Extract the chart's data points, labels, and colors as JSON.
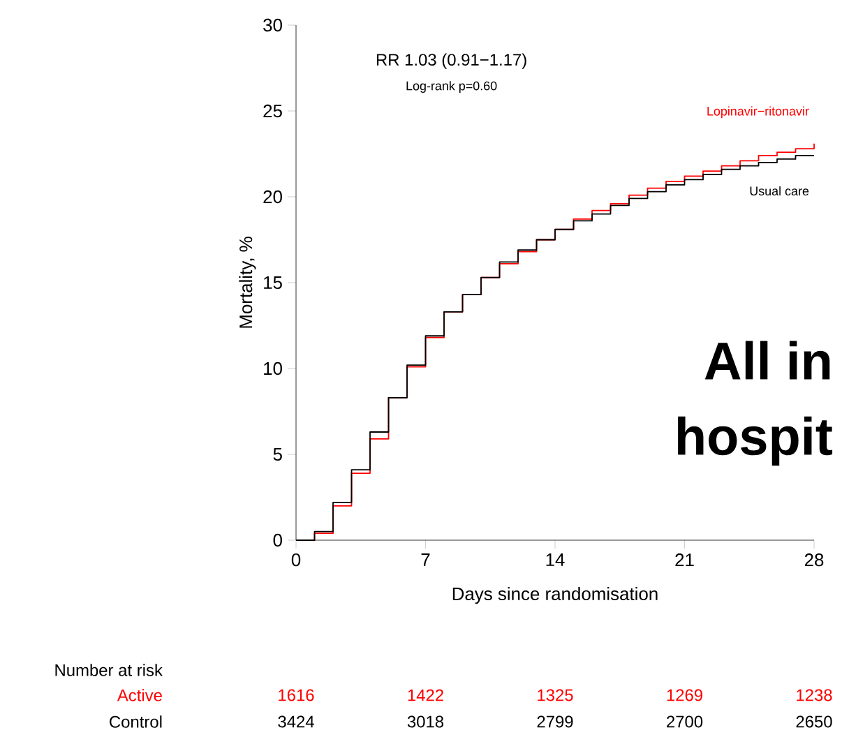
{
  "chart_data": {
    "type": "step",
    "xlabel": "Days since randomisation",
    "ylabel": "Mortality, %",
    "x": [
      0,
      1,
      2,
      3,
      4,
      5,
      6,
      7,
      8,
      9,
      10,
      11,
      12,
      13,
      14,
      15,
      16,
      17,
      18,
      19,
      20,
      21,
      22,
      23,
      24,
      25,
      26,
      27,
      28
    ],
    "series": [
      {
        "name": "Lopinavir−ritonavir",
        "color": "#ff0000",
        "values": [
          0,
          0.4,
          2.0,
          3.9,
          5.9,
          8.3,
          10.1,
          11.8,
          13.3,
          14.3,
          15.3,
          16.1,
          16.8,
          17.5,
          18.1,
          18.7,
          19.2,
          19.6,
          20.1,
          20.5,
          20.9,
          21.2,
          21.5,
          21.8,
          22.1,
          22.4,
          22.6,
          22.8,
          23.1
        ]
      },
      {
        "name": "Usual care",
        "color": "#000000",
        "values": [
          0,
          0.5,
          2.2,
          4.1,
          6.3,
          8.3,
          10.2,
          11.9,
          13.3,
          14.3,
          15.3,
          16.2,
          16.9,
          17.5,
          18.1,
          18.6,
          19.0,
          19.5,
          19.9,
          20.3,
          20.7,
          21.0,
          21.3,
          21.6,
          21.8,
          22.0,
          22.2,
          22.4,
          22.4
        ]
      }
    ],
    "xlim": [
      0,
      28
    ],
    "xticks": [
      0,
      7,
      14,
      21,
      28
    ],
    "ylim": [
      0,
      30
    ],
    "yticks": [
      0,
      5,
      10,
      15,
      20,
      25,
      30
    ],
    "grid": false,
    "legend": false,
    "annotations": [
      "RR 1.03 (0.91−1.17)",
      "Log-rank p=0.60",
      "Number at risk",
      "Active",
      "Control",
      "1616",
      "1422",
      "1325",
      "1269",
      "1238",
      "3424",
      "3018",
      "2799",
      "2700",
      "2650",
      "All in",
      "hospit"
    ]
  }
}
